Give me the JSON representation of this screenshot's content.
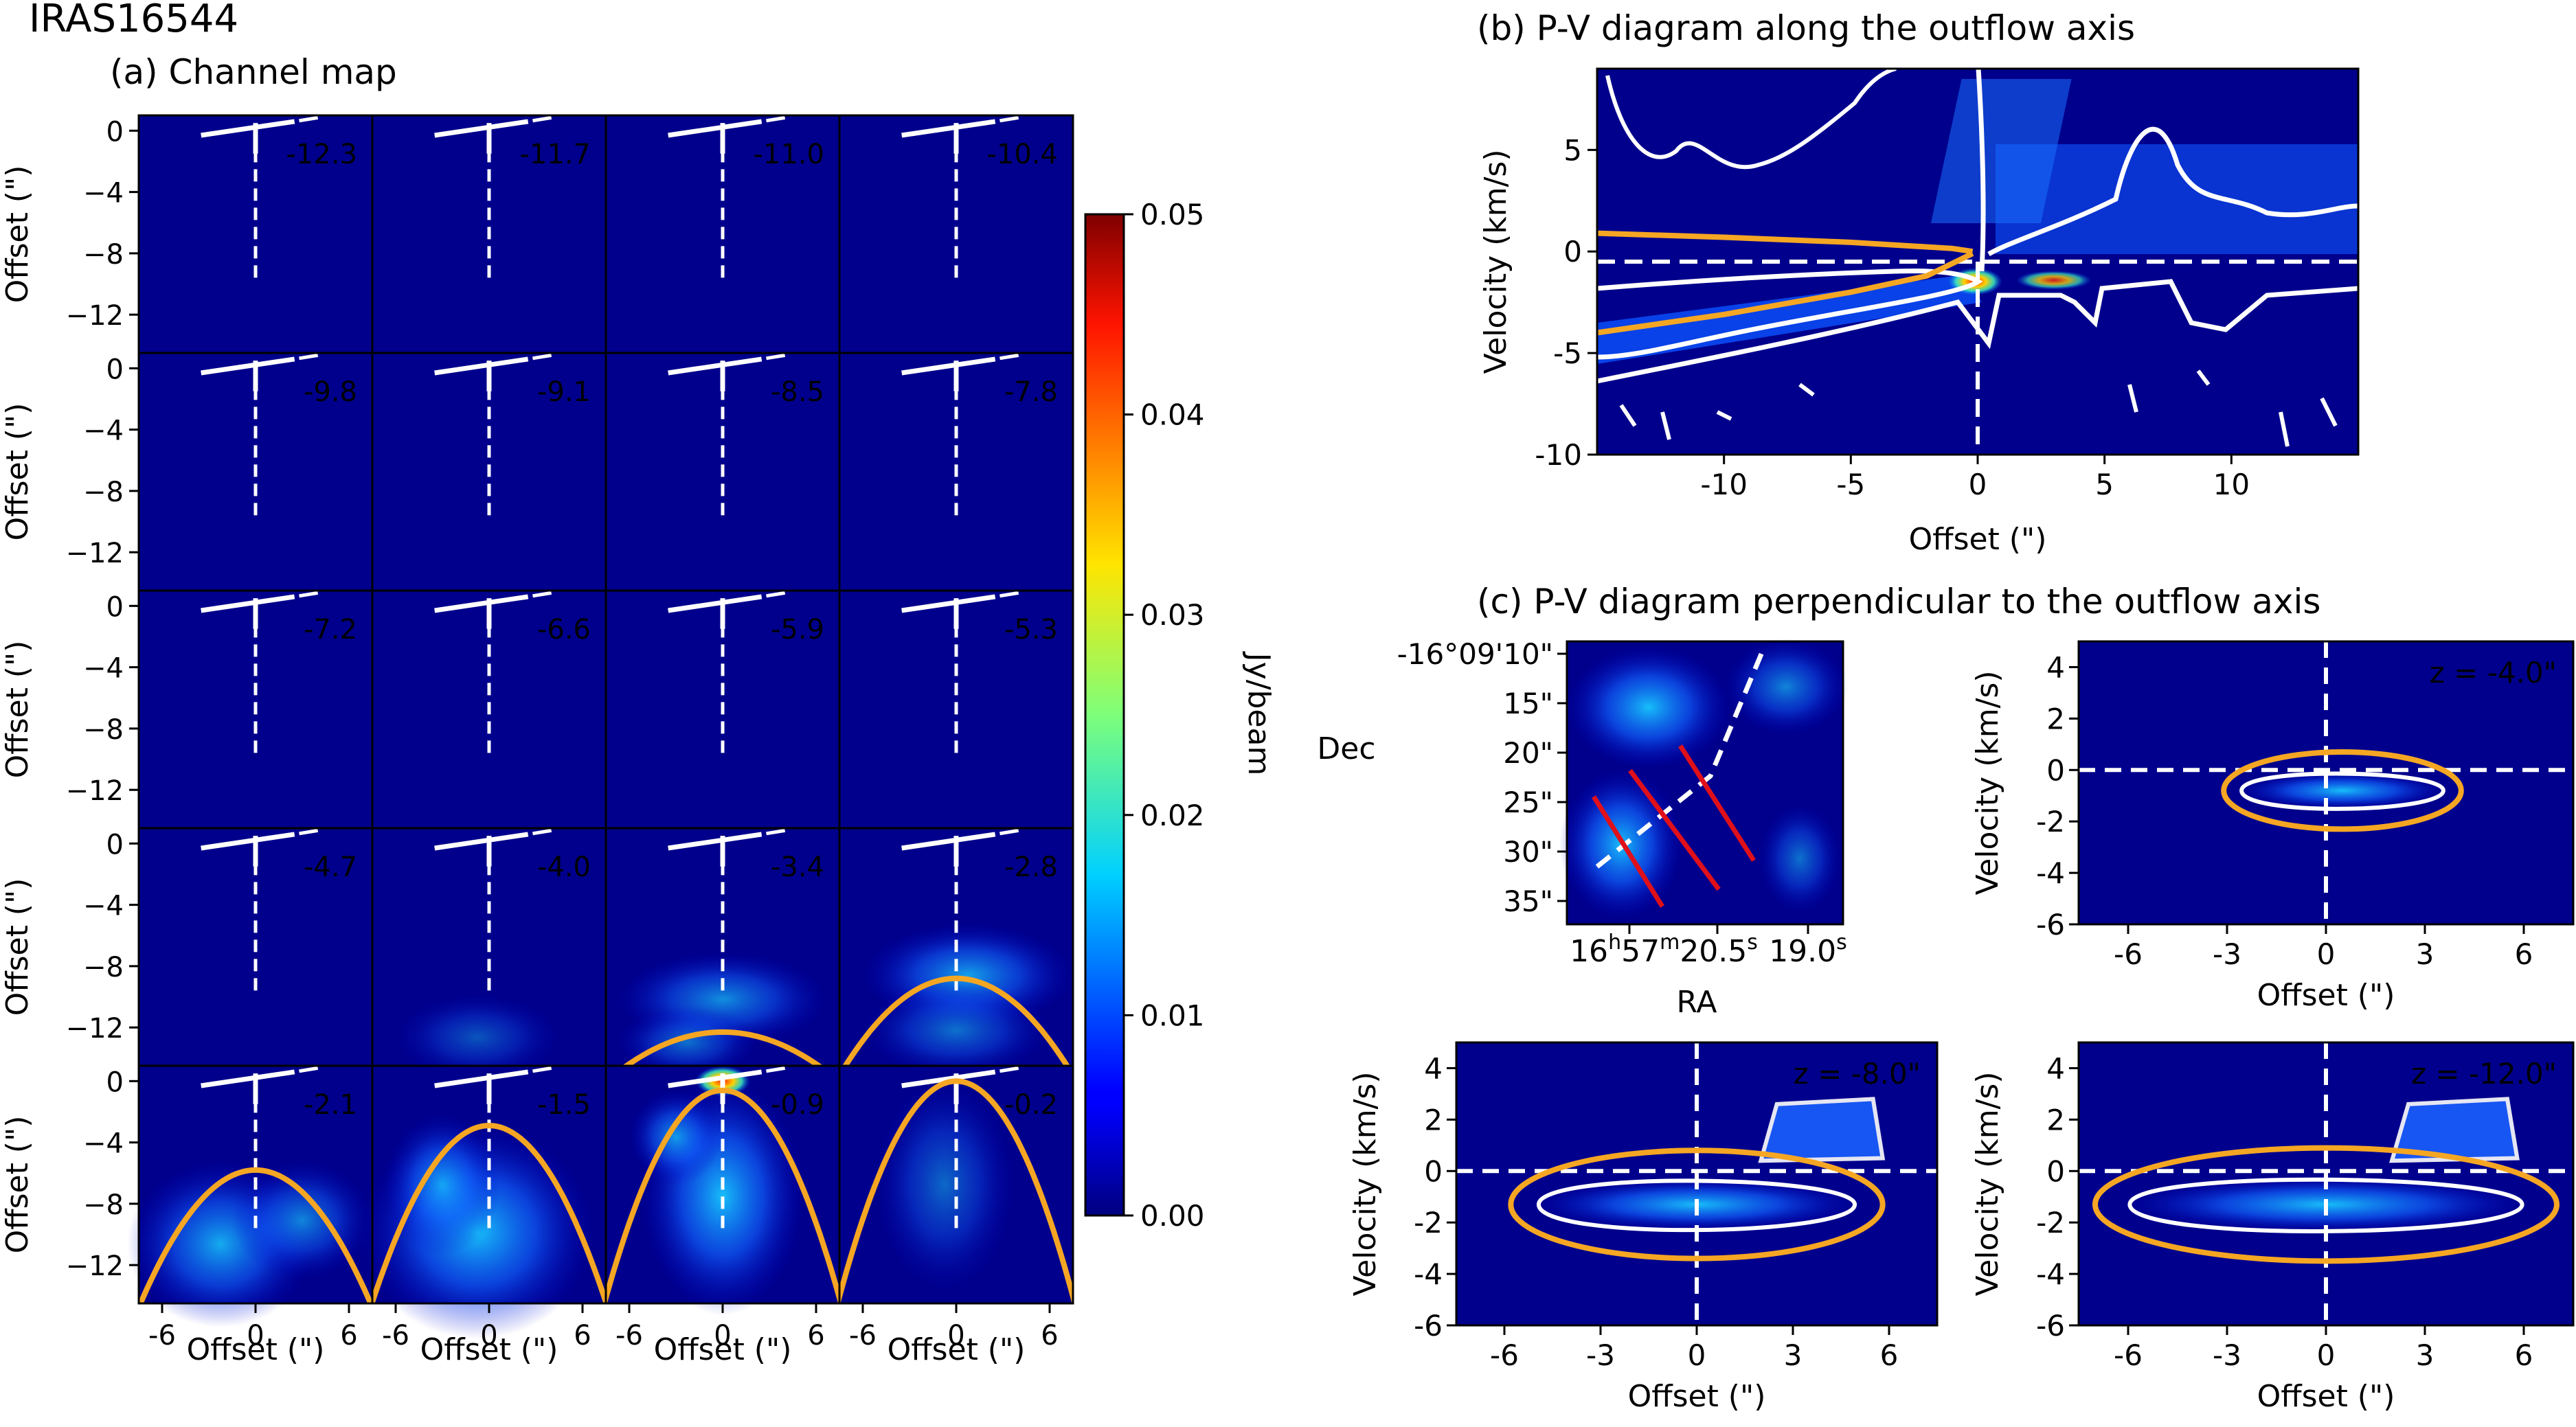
{
  "figure": {
    "source_name": "IRAS16544",
    "panel_a_title": "(a) Channel map",
    "panel_b_title": "(b) P-V diagram along the outflow axis",
    "panel_c_title": "(c) P-V diagram perpendicular to the outflow axis"
  },
  "colors": {
    "contour": "#ffffff",
    "parabola": "#f5a623",
    "cut_line": "#e0101a",
    "map_background": "#00008c"
  },
  "chart_data": [
    {
      "id": "channel-map",
      "type": "heatmap",
      "title": "(a) Channel map",
      "rows": 5,
      "cols": 4,
      "channel_velocities": [
        "-12.3",
        "-11.7",
        "-11.0",
        "-10.4",
        "-9.8",
        "-9.1",
        "-8.5",
        "-7.8",
        "-7.2",
        "-6.6",
        "-5.9",
        "-5.3",
        "-4.7",
        "-4.0",
        "-3.4",
        "-2.8",
        "-2.1",
        "-1.5",
        "-0.9",
        "-0.2"
      ],
      "xlabel": "Offset (\")",
      "ylabel": "Offset (\")",
      "xlim": [
        -7.5,
        7.5
      ],
      "ylim": [
        -14.5,
        1
      ],
      "xticks": [
        "-6",
        "0",
        "6"
      ],
      "xtick_values": [
        -6,
        0,
        6
      ],
      "yticks": [
        "0",
        "−4",
        "−8",
        "−12"
      ],
      "ytick_values": [
        0,
        -4,
        -8,
        -12
      ],
      "parabola_channels": [
        "-3.4",
        "-2.8",
        "-2.1",
        "-1.5",
        "-0.9",
        "-0.2"
      ],
      "parabola_vertex_y": [
        -12.3,
        -8.8,
        -5.8,
        -2.9,
        -0.6,
        0.0
      ],
      "colorbar": {
        "label": "Jy/beam",
        "range": [
          0.0,
          0.05
        ],
        "ticks": [
          "0.00",
          "0.01",
          "0.02",
          "0.03",
          "0.04",
          "0.05"
        ],
        "tick_values": [
          0.0,
          0.01,
          0.02,
          0.03,
          0.04,
          0.05
        ]
      }
    },
    {
      "id": "pv-along-axis",
      "type": "heatmap",
      "title": "(b) P-V diagram along the outflow axis",
      "xlabel": "Offset (\")",
      "ylabel": "Velocity (km/s)",
      "xlim": [
        -15,
        15
      ],
      "ylim": [
        -10,
        9
      ],
      "xticks": [
        "-10",
        "-5",
        "0",
        "5",
        "10"
      ],
      "xtick_values": [
        -10,
        -5,
        0,
        5,
        10
      ],
      "yticks": [
        "5",
        "0",
        "-5",
        "-10"
      ],
      "ytick_values": [
        5,
        0,
        -5,
        -10
      ],
      "model_curve_upper": [
        [
          -15,
          0.9
        ],
        [
          -10,
          0.7
        ],
        [
          -5,
          0.45
        ],
        [
          -1,
          0.15
        ],
        [
          -0.2,
          0.0
        ]
      ],
      "model_curve_lower": [
        [
          -15,
          -4.0
        ],
        [
          -10,
          -3.1
        ],
        [
          -5,
          -2.0
        ],
        [
          -2,
          -1.2
        ],
        [
          -0.2,
          -0.1
        ]
      ]
    },
    {
      "id": "cut-positions-map",
      "type": "heatmap",
      "xlabel": "RA",
      "ylabel": "Dec",
      "yticks": [
        "-16°09'10\"",
        "15\"",
        "20\"",
        "25\"",
        "30\"",
        "35\""
      ],
      "xtick_main": "16",
      "xtick_h": "h",
      "xtick_57": "57",
      "xtick_m": "m",
      "xtick_205": "20.5",
      "xtick_s": "s",
      "xtick_190": "19.0",
      "xtick_s2": "s"
    },
    {
      "id": "pv-perp-z4",
      "type": "heatmap",
      "annotation": "z = -4.0\"",
      "xlabel": "Offset (\")",
      "ylabel": "Velocity (km/s)",
      "xlim": [
        -7.5,
        7.5
      ],
      "ylim": [
        -6,
        5
      ],
      "xticks": [
        "-6",
        "-3",
        "0",
        "3",
        "6"
      ],
      "xtick_values": [
        -6,
        -3,
        0,
        3,
        6
      ],
      "yticks": [
        "4",
        "2",
        "0",
        "-2",
        "-4",
        "-6"
      ],
      "ytick_values": [
        4,
        2,
        0,
        -2,
        -4,
        -6
      ],
      "ellipse": {
        "center_x": 0.5,
        "center_v": -0.8,
        "half_width_x": 3.6,
        "half_height_v": 1.5
      }
    },
    {
      "id": "pv-perp-z8",
      "type": "heatmap",
      "annotation": "z = -8.0\"",
      "xlabel": "Offset (\")",
      "ylabel": "Velocity (km/s)",
      "xlim": [
        -7.5,
        7.5
      ],
      "ylim": [
        -6,
        5
      ],
      "xticks": [
        "-6",
        "-3",
        "0",
        "3",
        "6"
      ],
      "xtick_values": [
        -6,
        -3,
        0,
        3,
        6
      ],
      "yticks": [
        "4",
        "2",
        "0",
        "-2",
        "-4",
        "-6"
      ],
      "ytick_values": [
        4,
        2,
        0,
        -2,
        -4,
        -6
      ],
      "ellipse": {
        "center_x": 0.0,
        "center_v": -1.3,
        "half_width_x": 5.8,
        "half_height_v": 2.1
      }
    },
    {
      "id": "pv-perp-z12",
      "type": "heatmap",
      "annotation": "z = -12.0\"",
      "xlabel": "Offset (\")",
      "ylabel": "Velocity (km/s)",
      "xlim": [
        -7.5,
        7.5
      ],
      "ylim": [
        -6,
        5
      ],
      "xticks": [
        "-6",
        "-3",
        "0",
        "3",
        "6"
      ],
      "xtick_values": [
        -6,
        -3,
        0,
        3,
        6
      ],
      "yticks": [
        "4",
        "2",
        "0",
        "-2",
        "-4",
        "-6"
      ],
      "ytick_values": [
        4,
        2,
        0,
        -2,
        -4,
        -6
      ],
      "ellipse": {
        "center_x": 0.0,
        "center_v": -1.3,
        "half_width_x": 7.0,
        "half_height_v": 2.2
      }
    }
  ]
}
